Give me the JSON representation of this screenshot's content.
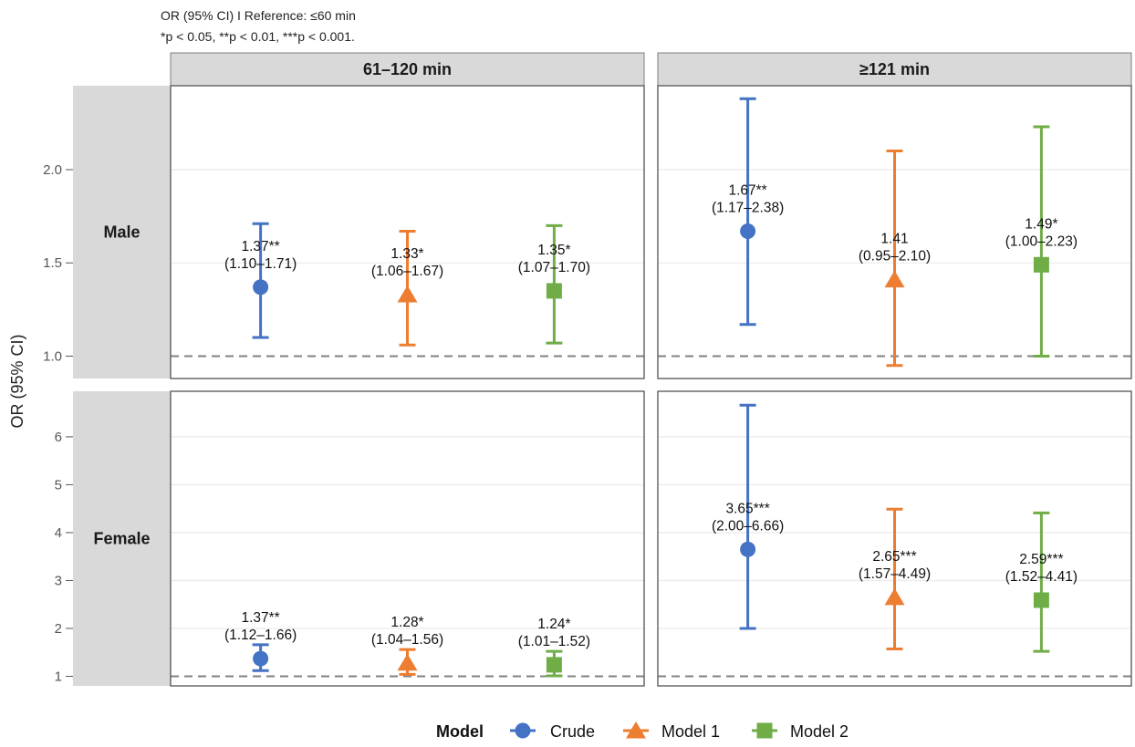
{
  "notes": {
    "line1": "OR (95% CI) I Reference: ≤60 min",
    "line2": "*p < 0.05, **p < 0.01, ***p < 0.001."
  },
  "colors": {
    "Crude": "#4472C4",
    "Model 1": "#ED7D31",
    "Model 2": "#70AD47",
    "strip_bg": "#d9d9d9",
    "grid": "#ebebeb",
    "reference_line": "#808080"
  },
  "chart_data": {
    "type": "scatter",
    "subtype": "faceted forest plot (point estimate with 95% CI error bars)",
    "ylabel": "OR (95% CI)",
    "reference_value": 1,
    "columns": [
      "61–120 min",
      "≥121 min"
    ],
    "rows": [
      "Male",
      "Female"
    ],
    "models": [
      "Crude",
      "Model 1",
      "Model 2"
    ],
    "shapes": {
      "Crude": "circle",
      "Model 1": "triangle",
      "Model 2": "square"
    },
    "legend": {
      "title": "Model",
      "position": "bottom",
      "entries": [
        "Crude",
        "Model 1",
        "Model 2"
      ]
    },
    "rows_config": [
      {
        "name": "Male",
        "ylim": [
          0.88,
          2.45
        ],
        "ticks": [
          1.0,
          1.5,
          2.0
        ],
        "tick_labels": [
          "1.0",
          "1.5",
          "2.0"
        ]
      },
      {
        "name": "Female",
        "ylim": [
          0.8,
          6.95
        ],
        "ticks": [
          1,
          2,
          3,
          4,
          5,
          6
        ],
        "tick_labels": [
          "1",
          "2",
          "3",
          "4",
          "5",
          "6"
        ]
      }
    ],
    "panels": [
      {
        "row": "Male",
        "column": "61–120 min",
        "points": [
          {
            "model": "Crude",
            "or": 1.37,
            "lower": 1.1,
            "upper": 1.71,
            "label1": "1.37**",
            "label2": "(1.10–1.71)"
          },
          {
            "model": "Model 1",
            "or": 1.33,
            "lower": 1.06,
            "upper": 1.67,
            "label1": "1.33*",
            "label2": "(1.06–1.67)"
          },
          {
            "model": "Model 2",
            "or": 1.35,
            "lower": 1.07,
            "upper": 1.7,
            "label1": "1.35*",
            "label2": "(1.07–1.70)"
          }
        ]
      },
      {
        "row": "Male",
        "column": "≥121 min",
        "points": [
          {
            "model": "Crude",
            "or": 1.67,
            "lower": 1.17,
            "upper": 2.38,
            "label1": "1.67**",
            "label2": "(1.17–2.38)"
          },
          {
            "model": "Model 1",
            "or": 1.41,
            "lower": 0.95,
            "upper": 2.1,
            "label1": "1.41",
            "label2": "(0.95–2.10)"
          },
          {
            "model": "Model 2",
            "or": 1.49,
            "lower": 1.0,
            "upper": 2.23,
            "label1": "1.49*",
            "label2": "(1.00–2.23)"
          }
        ]
      },
      {
        "row": "Female",
        "column": "61–120 min",
        "points": [
          {
            "model": "Crude",
            "or": 1.37,
            "lower": 1.12,
            "upper": 1.66,
            "label1": "1.37**",
            "label2": "(1.12–1.66)"
          },
          {
            "model": "Model 1",
            "or": 1.28,
            "lower": 1.04,
            "upper": 1.56,
            "label1": "1.28*",
            "label2": "(1.04–1.56)"
          },
          {
            "model": "Model 2",
            "or": 1.24,
            "lower": 1.01,
            "upper": 1.52,
            "label1": "1.24*",
            "label2": "(1.01–1.52)"
          }
        ]
      },
      {
        "row": "Female",
        "column": "≥121 min",
        "points": [
          {
            "model": "Crude",
            "or": 3.65,
            "lower": 2.0,
            "upper": 6.66,
            "label1": "3.65***",
            "label2": "(2.00–6.66)"
          },
          {
            "model": "Model 1",
            "or": 2.65,
            "lower": 1.57,
            "upper": 4.49,
            "label1": "2.65***",
            "label2": "(1.57–4.49)"
          },
          {
            "model": "Model 2",
            "or": 2.59,
            "lower": 1.52,
            "upper": 4.41,
            "label1": "2.59***",
            "label2": "(1.52–4.41)"
          }
        ]
      }
    ]
  }
}
